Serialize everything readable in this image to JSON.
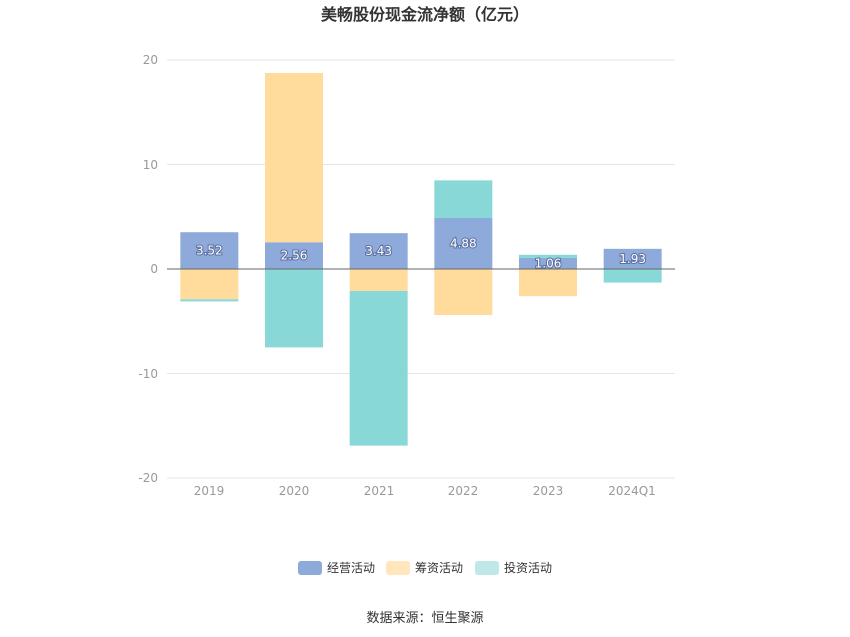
{
  "chart_data": {
    "type": "bar",
    "stacked": true,
    "title": "美畅股份现金流净额（亿元）",
    "categories": [
      "2019",
      "2020",
      "2021",
      "2022",
      "2023",
      "2024Q1"
    ],
    "y_ticks": [
      "20",
      "10",
      "0",
      "-10",
      "-20"
    ],
    "ylim": [
      -20,
      20
    ],
    "grid": true,
    "legend_position": "bottom",
    "series": [
      {
        "name": "经营活动",
        "color": "#8eaadb",
        "values": [
          3.52,
          2.56,
          3.43,
          4.88,
          1.06,
          1.93
        ],
        "labels": [
          "3.52",
          "2.56",
          "3.43",
          "4.88",
          "1.06",
          "1.93"
        ]
      },
      {
        "name": "筹资活动",
        "color": "#ffdb9c",
        "values": [
          -2.9,
          16.2,
          -2.1,
          -4.4,
          -2.6,
          0
        ]
      },
      {
        "name": "投资活动",
        "color": "#88d8d8",
        "values": [
          -0.2,
          -7.5,
          -14.8,
          3.6,
          0.3,
          -1.3
        ]
      }
    ],
    "source": "数据来源：恒生聚源"
  }
}
